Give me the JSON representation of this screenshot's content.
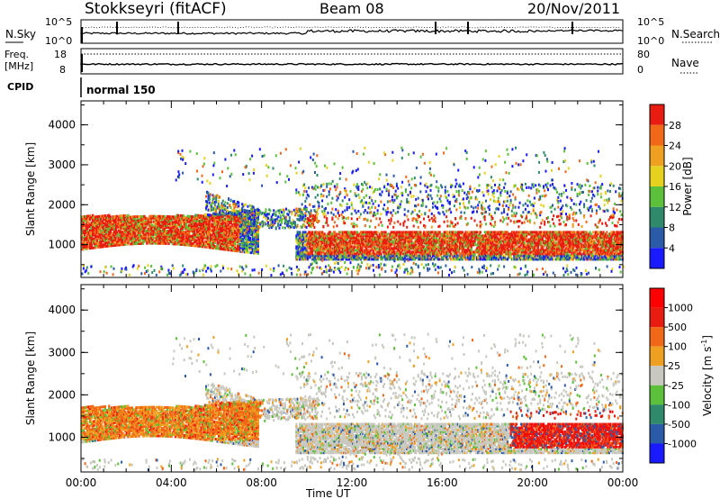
{
  "header": {
    "station": "Stokkseyri (fitACF)",
    "beam": "Beam 08",
    "date": "20/Nov/2011"
  },
  "strip_panels": {
    "nsky_label": "N.Sky",
    "nsearch_label": "N.Search",
    "noise_ticks": [
      "10^5",
      "10^0"
    ],
    "freq_label_1": "Freq.",
    "freq_label_2": "[MHz]",
    "freq_ticks": [
      "18",
      "8"
    ],
    "nave_label": "Nave",
    "nave_ticks": [
      "80",
      "0"
    ],
    "cpid_label": "CPID",
    "cpid_value": "normal 150"
  },
  "chart_data": [
    {
      "type": "heatmap",
      "name": "power",
      "xlabel": "Time UT",
      "ylabel": "Slant Range [km]",
      "x_ticks": [
        "00:00",
        "04:00",
        "08:00",
        "12:00",
        "16:00",
        "20:00",
        "00:00"
      ],
      "xlim_hours": [
        0,
        24
      ],
      "y_ticks": [
        1000,
        2000,
        3000,
        4000
      ],
      "ylim": [
        180,
        4600
      ],
      "colorbar": {
        "label": "Power [dB]",
        "ticks": [
          "4",
          "8",
          "12",
          "16",
          "20",
          "24",
          "28"
        ],
        "colors": [
          "#1a1aff",
          "#2a5aa8",
          "#2e8a6a",
          "#5cc03a",
          "#e6d21e",
          "#f0a020",
          "#f06818",
          "#e81c10"
        ]
      }
    },
    {
      "type": "heatmap",
      "name": "velocity",
      "xlabel": "Time UT",
      "ylabel": "Slant Range [km]",
      "x_ticks": [
        "00:00",
        "04:00",
        "08:00",
        "12:00",
        "16:00",
        "20:00",
        "00:00"
      ],
      "xlim_hours": [
        0,
        24
      ],
      "y_ticks": [
        1000,
        2000,
        3000,
        4000
      ],
      "ylim": [
        180,
        4600
      ],
      "colorbar": {
        "label_main": "Velocity [m s",
        "label_sup": "-1",
        "label_end": "]",
        "ticks": [
          "1000",
          "500",
          "100",
          "25",
          "-25",
          "-100",
          "-500",
          "-1000"
        ],
        "colors": [
          "#1a1aff",
          "#2a5aa8",
          "#2e8a6a",
          "#5cc03a",
          "#c8c8c0",
          "#f0a020",
          "#f06818",
          "#e81c10",
          "#ff0000"
        ]
      }
    }
  ]
}
